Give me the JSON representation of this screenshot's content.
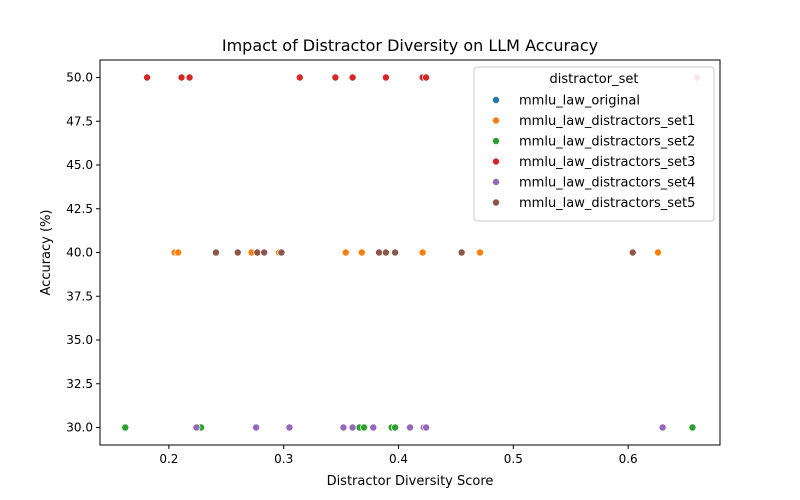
{
  "chart_data": {
    "type": "scatter",
    "title": "Impact of Distractor Diversity on LLM Accuracy",
    "xlabel": "Distractor Diversity Score",
    "ylabel": "Accuracy (%)",
    "xlim": [
      0.14,
      0.68
    ],
    "ylim": [
      29.0,
      51.0
    ],
    "xticks": [
      0.2,
      0.3,
      0.4,
      0.5,
      0.6
    ],
    "xtick_labels": [
      "0.2",
      "0.3",
      "0.4",
      "0.5",
      "0.6"
    ],
    "yticks": [
      30.0,
      32.5,
      35.0,
      37.5,
      40.0,
      42.5,
      45.0,
      47.5,
      50.0
    ],
    "ytick_labels": [
      "30.0",
      "32.5",
      "35.0",
      "37.5",
      "40.0",
      "42.5",
      "45.0",
      "47.5",
      "50.0"
    ],
    "grid": false,
    "legend": {
      "title": "distractor_set",
      "placement": "top-right"
    },
    "series": [
      {
        "name": "mmlu_law_original",
        "color": "#1f77b4",
        "points": []
      },
      {
        "name": "mmlu_law_distractors_set1",
        "color": "#ff7f0e",
        "points": [
          [
            0.205,
            40
          ],
          [
            0.208,
            40
          ],
          [
            0.272,
            40
          ],
          [
            0.296,
            40
          ],
          [
            0.354,
            40
          ],
          [
            0.368,
            40
          ],
          [
            0.421,
            40
          ],
          [
            0.471,
            40
          ],
          [
            0.626,
            40
          ]
        ]
      },
      {
        "name": "mmlu_law_distractors_set2",
        "color": "#2ca02c",
        "points": [
          [
            0.162,
            30
          ],
          [
            0.228,
            30
          ],
          [
            0.366,
            30
          ],
          [
            0.37,
            30
          ],
          [
            0.394,
            30
          ],
          [
            0.397,
            30
          ],
          [
            0.656,
            30
          ]
        ]
      },
      {
        "name": "mmlu_law_distractors_set3",
        "color": "#d62728",
        "points": [
          [
            0.181,
            50
          ],
          [
            0.211,
            50
          ],
          [
            0.218,
            50
          ],
          [
            0.314,
            50
          ],
          [
            0.345,
            50
          ],
          [
            0.36,
            50
          ],
          [
            0.389,
            50
          ],
          [
            0.421,
            50
          ],
          [
            0.424,
            50
          ]
        ]
      },
      {
        "name": "mmlu_law_distractors_set4",
        "color": "#9467bd",
        "points": [
          [
            0.224,
            30
          ],
          [
            0.276,
            30
          ],
          [
            0.305,
            30
          ],
          [
            0.352,
            30
          ],
          [
            0.36,
            30
          ],
          [
            0.378,
            30
          ],
          [
            0.41,
            30
          ],
          [
            0.422,
            30
          ],
          [
            0.424,
            30
          ],
          [
            0.63,
            30
          ]
        ]
      },
      {
        "name": "mmlu_law_distractors_set5",
        "color": "#8c564b",
        "points": [
          [
            0.241,
            40
          ],
          [
            0.26,
            40
          ],
          [
            0.277,
            40
          ],
          [
            0.283,
            40
          ],
          [
            0.298,
            40
          ],
          [
            0.383,
            40
          ],
          [
            0.389,
            40
          ],
          [
            0.397,
            40
          ],
          [
            0.455,
            40
          ],
          [
            0.604,
            40
          ]
        ]
      },
      {
        "name": "",
        "color": "#e377c2",
        "points": [
          [
            0.66,
            50
          ]
        ]
      }
    ]
  }
}
